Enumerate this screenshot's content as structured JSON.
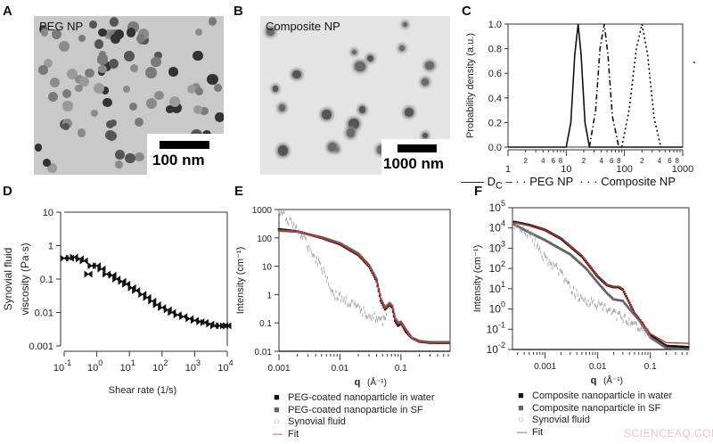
{
  "panels": {
    "A": {
      "label": "A",
      "title": "PEG NP",
      "scale_bar": "100 nm"
    },
    "B": {
      "label": "B",
      "title": "Composite NP",
      "scale_bar": "1000 nm"
    },
    "C": {
      "label": "C"
    },
    "D": {
      "label": "D"
    },
    "E": {
      "label": "E"
    },
    "F": {
      "label": "F"
    }
  },
  "watermark": "SCIENCEAQ.COM",
  "chart_data": [
    {
      "panel": "C",
      "type": "line",
      "ylabel": "Probability density (a.u.)",
      "xlim": [
        1,
        1000
      ],
      "xscale": "log",
      "ylim": [
        0,
        1.0
      ],
      "x_tick_labels": [
        "1",
        "10",
        "100",
        "1000"
      ],
      "x_minor_tick_labels": [
        "2",
        "4",
        "6",
        "8"
      ],
      "y_tick_labels": [
        "0.0",
        "0.2",
        "0.4",
        "0.6",
        "0.8",
        "1.0"
      ],
      "legend_position": "bottom",
      "series": [
        {
          "name": "D",
          "name_subscript": "C",
          "style": "solid",
          "x": [
            10,
            12,
            14,
            16,
            18,
            21,
            25
          ],
          "y": [
            0,
            0.2,
            0.75,
            1.0,
            0.75,
            0.2,
            0
          ]
        },
        {
          "name": "PEG NP",
          "style": "dash-dot",
          "x": [
            25,
            32,
            38,
            45,
            52,
            62,
            80
          ],
          "y": [
            0,
            0.3,
            0.8,
            1.0,
            0.75,
            0.25,
            0
          ]
        },
        {
          "name": "Composite NP",
          "style": "dotted",
          "x": [
            90,
            120,
            160,
            200,
            250,
            320,
            420
          ],
          "y": [
            0,
            0.3,
            0.8,
            1.0,
            0.75,
            0.25,
            0
          ]
        }
      ]
    },
    {
      "panel": "D",
      "type": "scatter",
      "xlabel": "Shear rate (1/s)",
      "ylabel": [
        "Synovial fluid",
        "viscosity (Pa·s)"
      ],
      "xlim": [
        0.1,
        10000
      ],
      "xscale": "log",
      "ylim": [
        0.001,
        10
      ],
      "yscale": "log",
      "x_tick_labels": [
        {
          "base": "10",
          "exp": "-1"
        },
        {
          "base": "10",
          "exp": "0"
        },
        {
          "base": "10",
          "exp": "1"
        },
        {
          "base": "10",
          "exp": "2"
        },
        {
          "base": "10",
          "exp": "3"
        },
        {
          "base": "10",
          "exp": "4"
        }
      ],
      "y_tick_labels": [
        "10",
        "1",
        "0.1",
        "0.01",
        "0.001"
      ],
      "series": [
        {
          "x": [
            0.1,
            0.15,
            0.2,
            0.3,
            0.4,
            0.55,
            0.7,
            1,
            1.4,
            2,
            3,
            4,
            6,
            8,
            12,
            16,
            25,
            35,
            50,
            70,
            100,
            150,
            200,
            300,
            450,
            700,
            1000,
            1500,
            2000,
            3000,
            4000,
            6000,
            8000,
            10000
          ],
          "y": [
            0.42,
            0.42,
            0.45,
            0.4,
            0.35,
            0.14,
            0.25,
            0.25,
            0.2,
            0.14,
            0.13,
            0.1,
            0.085,
            0.07,
            0.055,
            0.045,
            0.035,
            0.028,
            0.022,
            0.017,
            0.014,
            0.012,
            0.01,
            0.0085,
            0.0075,
            0.0065,
            0.0058,
            0.0053,
            0.005,
            0.0045,
            0.004,
            0.004,
            0.004,
            0.004
          ]
        }
      ]
    },
    {
      "panel": "E",
      "type": "line",
      "xlabel": "q",
      "xlabel_unit": "(Å⁻¹)",
      "ylabel": "Intensity (cm⁻¹)",
      "xlim": [
        0.001,
        0.64
      ],
      "xscale": "log",
      "ylim": [
        0.01,
        1000
      ],
      "yscale": "log",
      "x_tick_labels": [
        "0.001",
        "0.01",
        "0.1"
      ],
      "y_tick_labels": [
        "1000",
        "100",
        "10",
        "1",
        "0.1",
        "0.01"
      ],
      "legend_position": "bottom",
      "series": [
        {
          "name": "PEG-coated nanoparticle in water",
          "color": "#111111",
          "marker": "square",
          "x": [
            0.001,
            0.002,
            0.005,
            0.01,
            0.02,
            0.03,
            0.04,
            0.047,
            0.055,
            0.065,
            0.072,
            0.08,
            0.09,
            0.1,
            0.12,
            0.15,
            0.2,
            0.3,
            0.64
          ],
          "y": [
            200,
            170,
            100,
            60,
            25,
            10,
            3,
            0.6,
            0.3,
            0.45,
            0.35,
            0.12,
            0.08,
            0.1,
            0.05,
            0.03,
            0.022,
            0.02,
            0.02
          ]
        },
        {
          "name": "PEG-coated nanoparticle in SF",
          "color": "#666666",
          "marker": "square",
          "x": [
            0.001,
            0.002,
            0.005,
            0.01,
            0.02,
            0.03,
            0.04,
            0.047,
            0.055,
            0.065,
            0.072,
            0.08,
            0.09,
            0.1,
            0.12,
            0.15,
            0.2,
            0.3,
            0.64
          ],
          "y": [
            180,
            165,
            105,
            65,
            28,
            11,
            3.5,
            0.7,
            0.35,
            0.5,
            0.4,
            0.15,
            0.1,
            0.11,
            0.06,
            0.03,
            0.023,
            0.021,
            0.021
          ]
        },
        {
          "name": "Synovial fluid",
          "color": "#999999",
          "marker": "open-circle",
          "x": [
            0.001,
            0.0015,
            0.002,
            0.003,
            0.004,
            0.005,
            0.006,
            0.008,
            0.01,
            0.015,
            0.02,
            0.03,
            0.04,
            0.05,
            0.06
          ],
          "y": [
            800,
            400,
            200,
            50,
            20,
            10,
            4,
            1,
            0.8,
            0.5,
            0.3,
            0.2,
            0.15,
            0.1,
            0.3
          ]
        },
        {
          "name": "Fit",
          "color": "#cc2a2a",
          "marker": "line",
          "x": [
            0.001,
            0.002,
            0.005,
            0.01,
            0.02,
            0.03,
            0.04,
            0.047,
            0.055,
            0.065,
            0.072,
            0.08,
            0.09,
            0.1,
            0.12,
            0.15,
            0.2,
            0.3,
            0.64
          ],
          "y": [
            190,
            168,
            102,
            62,
            26,
            10.5,
            3.2,
            0.65,
            0.32,
            0.47,
            0.37,
            0.13,
            0.09,
            0.1,
            0.055,
            0.03,
            0.022,
            0.02,
            0.02
          ]
        }
      ]
    },
    {
      "panel": "F",
      "type": "line",
      "xlabel": "q",
      "xlabel_unit": "(Å⁻¹)",
      "ylabel": "Intensity (cm⁻¹)",
      "xlim": [
        0.00024,
        0.54
      ],
      "xscale": "log",
      "ylim": [
        0.01,
        100000
      ],
      "yscale": "log",
      "x_tick_labels": [
        "0.001",
        "0.01",
        "0.1"
      ],
      "y_tick_labels": [
        {
          "base": "10",
          "exp": "5"
        },
        {
          "base": "10",
          "exp": "4"
        },
        {
          "base": "10",
          "exp": "3"
        },
        {
          "base": "10",
          "exp": "2"
        },
        {
          "base": "10",
          "exp": "1"
        },
        {
          "base": "10",
          "exp": "0"
        },
        {
          "base": "10",
          "exp": "-1"
        },
        {
          "base": "10",
          "exp": "-2"
        }
      ],
      "legend_position": "bottom",
      "series": [
        {
          "name": "Composite nanoparticle in water",
          "color": "#111111",
          "marker": "square",
          "x": [
            0.00026,
            0.0005,
            0.001,
            0.002,
            0.005,
            0.01,
            0.015,
            0.02,
            0.025,
            0.03,
            0.04,
            0.05,
            0.07,
            0.1,
            0.2,
            0.54
          ],
          "y": [
            20000,
            14000,
            8000,
            3000,
            400,
            40,
            15,
            12,
            12,
            9,
            2,
            0.6,
            0.2,
            0.05,
            0.015,
            0.013
          ]
        },
        {
          "name": "Composite nanoparticle in SF",
          "color": "#666666",
          "marker": "square",
          "x": [
            0.00026,
            0.0005,
            0.001,
            0.002,
            0.003,
            0.006,
            0.01,
            0.015,
            0.02,
            0.03,
            0.04,
            0.06,
            0.1,
            0.2,
            0.54
          ],
          "y": [
            15000,
            6000,
            2500,
            900,
            500,
            100,
            20,
            6,
            3,
            2.5,
            1,
            0.3,
            0.04,
            0.012,
            0.01
          ]
        },
        {
          "name": "Synovial fluid",
          "color": "#999999",
          "marker": "open-circle",
          "x": [
            0.00026,
            0.0004,
            0.0006,
            0.001,
            0.0015,
            0.002,
            0.003,
            0.005,
            0.01,
            0.02,
            0.05,
            0.1
          ],
          "y": [
            15000,
            8000,
            3000,
            300,
            150,
            60,
            10,
            3,
            1.5,
            0.6,
            0.2,
            0.06
          ]
        },
        {
          "name": "Fit",
          "color": "#cc2a2a",
          "marker": "line",
          "x": [
            0.00026,
            0.0005,
            0.001,
            0.002,
            0.005,
            0.01,
            0.015,
            0.02,
            0.025,
            0.03,
            0.04,
            0.05,
            0.07,
            0.1,
            0.2,
            0.54
          ],
          "y": [
            19000,
            13500,
            8000,
            3100,
            420,
            42,
            15,
            12,
            12.5,
            9,
            2,
            0.6,
            0.2,
            0.06,
            0.022,
            0.02
          ]
        }
      ]
    }
  ]
}
